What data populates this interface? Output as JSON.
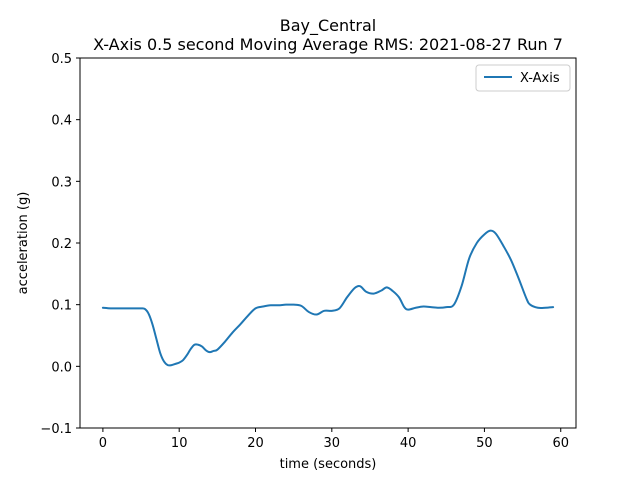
{
  "chart_data": {
    "type": "line",
    "title": "Bay_Central",
    "subtitle": "X-Axis 0.5 second Moving Average RMS: 2021-08-27 Run 7",
    "xlabel": "time (seconds)",
    "ylabel": "acceleration (g)",
    "xlim": [
      -3,
      62
    ],
    "ylim": [
      -0.1,
      0.5
    ],
    "xticks": [
      0,
      10,
      20,
      30,
      40,
      50,
      60
    ],
    "yticks": [
      -0.1,
      0.0,
      0.1,
      0.2,
      0.3,
      0.4,
      0.5
    ],
    "xtick_labels": [
      "0",
      "10",
      "20",
      "30",
      "40",
      "50",
      "60"
    ],
    "ytick_labels": [
      "−0.1",
      "0.0",
      "0.1",
      "0.2",
      "0.3",
      "0.4",
      "0.5"
    ],
    "grid": false,
    "legend_position": "top-right",
    "series": [
      {
        "name": "X-Axis",
        "color": "#1f77b4",
        "x": [
          0,
          1,
          2,
          3,
          4,
          5,
          5.5,
          6,
          6.5,
          7,
          7.5,
          8,
          8.5,
          9,
          9.5,
          10,
          10.5,
          11,
          11.5,
          12,
          12.5,
          13,
          13.5,
          14,
          14.5,
          15,
          16,
          17,
          18,
          19,
          20,
          21,
          22,
          23,
          24,
          25,
          26,
          27,
          28,
          29,
          30,
          31,
          32,
          33,
          33.7,
          34.5,
          35.5,
          36.5,
          37.2,
          38,
          38.8,
          39.5,
          40,
          41,
          42,
          43,
          44,
          45,
          46,
          47,
          48,
          49,
          50,
          50.8,
          51.5,
          52.5,
          53.5,
          54.5,
          55.5,
          56,
          57,
          58,
          59
        ],
        "values": [
          0.095,
          0.094,
          0.094,
          0.094,
          0.094,
          0.094,
          0.093,
          0.085,
          0.068,
          0.045,
          0.022,
          0.008,
          0.002,
          0.002,
          0.004,
          0.006,
          0.01,
          0.018,
          0.028,
          0.035,
          0.035,
          0.032,
          0.026,
          0.023,
          0.025,
          0.027,
          0.04,
          0.055,
          0.068,
          0.082,
          0.094,
          0.097,
          0.099,
          0.099,
          0.1,
          0.1,
          0.098,
          0.088,
          0.084,
          0.09,
          0.09,
          0.094,
          0.112,
          0.127,
          0.13,
          0.121,
          0.118,
          0.123,
          0.128,
          0.122,
          0.112,
          0.096,
          0.092,
          0.095,
          0.097,
          0.096,
          0.095,
          0.096,
          0.1,
          0.13,
          0.175,
          0.2,
          0.214,
          0.22,
          0.215,
          0.195,
          0.172,
          0.142,
          0.11,
          0.1,
          0.095,
          0.095,
          0.096
        ]
      }
    ]
  }
}
